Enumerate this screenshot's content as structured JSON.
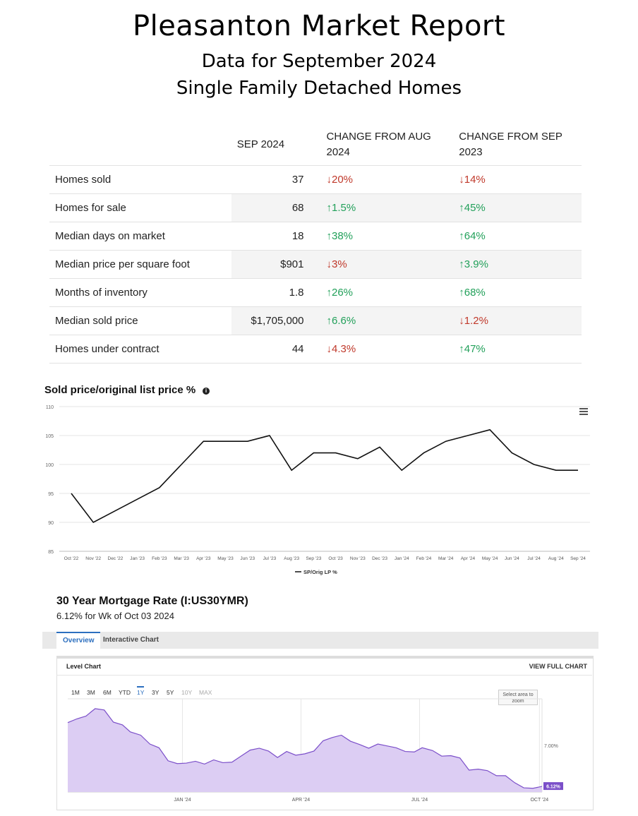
{
  "header": {
    "title": "Pleasanton Market Report",
    "subtitle1": "Data for September 2024",
    "subtitle2": "Single Family Detached Homes"
  },
  "table": {
    "col_headers": [
      "",
      "SEP 2024",
      "CHANGE FROM AUG 2024",
      "CHANGE FROM SEP 2023"
    ],
    "rows": [
      {
        "label": "Homes sold",
        "value": "37",
        "chg_aug": {
          "dir": "down",
          "text": "20%"
        },
        "chg_sep": {
          "dir": "down",
          "text": "14%"
        }
      },
      {
        "label": "Homes for sale",
        "value": "68",
        "chg_aug": {
          "dir": "up",
          "text": "1.5%"
        },
        "chg_sep": {
          "dir": "up",
          "text": "45%"
        }
      },
      {
        "label": "Median days on market",
        "value": "18",
        "chg_aug": {
          "dir": "up",
          "text": "38%"
        },
        "chg_sep": {
          "dir": "up",
          "text": "64%"
        }
      },
      {
        "label": "Median price per square foot",
        "value": "$901",
        "chg_aug": {
          "dir": "down",
          "text": "3%"
        },
        "chg_sep": {
          "dir": "up",
          "text": "3.9%"
        }
      },
      {
        "label": "Months of inventory",
        "value": "1.8",
        "chg_aug": {
          "dir": "up",
          "text": "26%"
        },
        "chg_sep": {
          "dir": "up",
          "text": "68%"
        }
      },
      {
        "label": "Median sold price",
        "value": "$1,705,000",
        "chg_aug": {
          "dir": "up",
          "text": "6.6%"
        },
        "chg_sep": {
          "dir": "down",
          "text": "1.2%"
        }
      },
      {
        "label": "Homes under contract",
        "value": "44",
        "chg_aug": {
          "dir": "down",
          "text": "4.3%"
        },
        "chg_sep": {
          "dir": "up",
          "text": "47%"
        }
      }
    ],
    "colors": {
      "up": "#22a05a",
      "down": "#c0392b"
    }
  },
  "chart_data": [
    {
      "type": "line",
      "title": "Sold price/original list price %",
      "categories": [
        "Oct '22",
        "Nov '22",
        "Dec '22",
        "Jan '23",
        "Feb '23",
        "Mar '23",
        "Apr '23",
        "May '23",
        "Jun '23",
        "Jul '23",
        "Aug '23",
        "Sep '23",
        "Oct '23",
        "Nov '23",
        "Dec '23",
        "Jan '24",
        "Feb '24",
        "Mar '24",
        "Apr '24",
        "May '24",
        "Jun '24",
        "Jul '24",
        "Aug '24",
        "Sep '24"
      ],
      "series": [
        {
          "name": "SP/Orig LP %",
          "color": "#111111",
          "values": [
            95,
            90,
            92,
            94,
            96,
            100,
            104,
            104,
            104,
            105,
            99,
            102,
            102,
            101,
            103,
            99,
            102,
            104,
            105,
            106,
            102,
            100,
            99,
            99
          ]
        }
      ],
      "yticks": [
        85,
        90,
        95,
        100,
        105,
        110
      ],
      "ylim": [
        85,
        110
      ],
      "grid": true,
      "legend": "bottom"
    },
    {
      "type": "area",
      "title": "30 Year Mortgage Rate (I:US30YMR)",
      "subtitle": "6.12% for Wk of Oct 03 2024",
      "xticks": [
        "JAN '24",
        "APR '24",
        "JUL '24",
        "OCT '24"
      ],
      "y_label_mark": "7.00%",
      "current_label": "6.12%",
      "color": "#7b4fc9",
      "fill": "#dccdf3",
      "x": [
        "2023-10-05",
        "2023-10-12",
        "2023-10-19",
        "2023-10-26",
        "2023-11-02",
        "2023-11-09",
        "2023-11-16",
        "2023-11-22",
        "2023-11-30",
        "2023-12-07",
        "2023-12-14",
        "2023-12-21",
        "2023-12-28",
        "2024-01-04",
        "2024-01-11",
        "2024-01-18",
        "2024-01-25",
        "2024-02-01",
        "2024-02-08",
        "2024-02-15",
        "2024-02-22",
        "2024-02-29",
        "2024-03-07",
        "2024-03-14",
        "2024-03-21",
        "2024-03-28",
        "2024-04-04",
        "2024-04-11",
        "2024-04-18",
        "2024-04-25",
        "2024-05-02",
        "2024-05-09",
        "2024-05-16",
        "2024-05-23",
        "2024-05-30",
        "2024-06-06",
        "2024-06-13",
        "2024-06-20",
        "2024-06-27",
        "2024-07-03",
        "2024-07-11",
        "2024-07-18",
        "2024-07-25",
        "2024-08-01",
        "2024-08-08",
        "2024-08-15",
        "2024-08-22",
        "2024-08-29",
        "2024-09-05",
        "2024-09-12",
        "2024-09-19",
        "2024-09-26",
        "2024-10-03"
      ],
      "values": [
        7.49,
        7.57,
        7.63,
        7.79,
        7.76,
        7.5,
        7.44,
        7.29,
        7.22,
        7.03,
        6.95,
        6.67,
        6.61,
        6.62,
        6.66,
        6.6,
        6.69,
        6.63,
        6.64,
        6.77,
        6.9,
        6.94,
        6.88,
        6.74,
        6.87,
        6.79,
        6.82,
        6.88,
        7.1,
        7.17,
        7.22,
        7.09,
        7.02,
        6.94,
        7.03,
        6.99,
        6.95,
        6.87,
        6.86,
        6.95,
        6.89,
        6.77,
        6.78,
        6.73,
        6.47,
        6.49,
        6.46,
        6.35,
        6.35,
        6.2,
        6.09,
        6.08,
        6.12
      ],
      "ylim": [
        6.0,
        8.0
      ]
    }
  ],
  "mortgage": {
    "tabs": [
      "Overview",
      "Interactive Chart"
    ],
    "panel_title": "Level Chart",
    "view_full": "VIEW FULL CHART",
    "ranges": [
      "1M",
      "3M",
      "6M",
      "YTD",
      "1Y",
      "3Y",
      "5Y",
      "10Y",
      "MAX"
    ],
    "active_range": "1Y",
    "zoom_hint": "Select area to zoom"
  }
}
